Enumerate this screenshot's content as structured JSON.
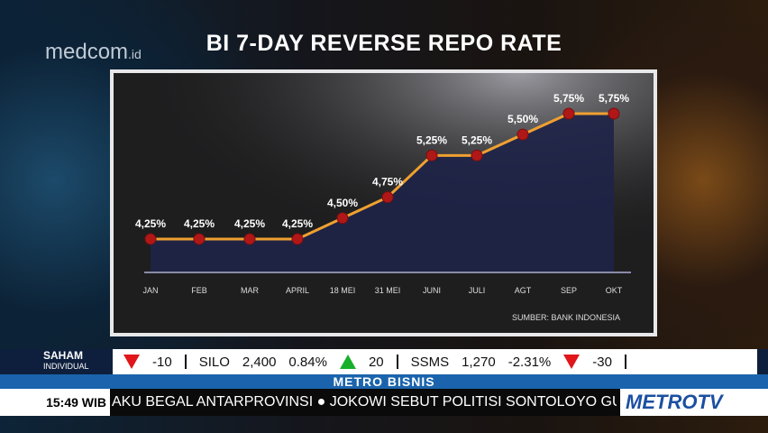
{
  "logo": {
    "text": "medcom",
    "suffix": ".id"
  },
  "chart_data": {
    "type": "line",
    "title": "BI 7-DAY REVERSE REPO RATE",
    "categories": [
      "JAN",
      "FEB",
      "MAR",
      "APRIL",
      "18 MEI",
      "31 MEI",
      "JUNI",
      "JULI",
      "AGT",
      "SEP",
      "OKT"
    ],
    "values": [
      4.25,
      4.25,
      4.25,
      4.25,
      4.5,
      4.75,
      5.25,
      5.25,
      5.5,
      5.75,
      5.75
    ],
    "data_labels": [
      "4,25%",
      "4,25%",
      "4,25%",
      "4,25%",
      "4,50%",
      "4,75%",
      "5,25%",
      "5,25%",
      "5,50%",
      "5,75%",
      "5,75%"
    ],
    "ylim": [
      3.85,
      5.8
    ],
    "source": "SUMBER:  BANK INDONESIA",
    "line_color": "#f0a030",
    "marker_color": "#b01818",
    "area_color": "#1e2448"
  },
  "ticker": {
    "label": "SAHAM",
    "sublabel": "INDIVIDUAL",
    "items": [
      "-10",
      "SILO",
      "2,400",
      "0.84%",
      "20",
      "SSMS",
      "1,270",
      "-2.31%",
      "-30"
    ]
  },
  "program": "METRO BISNIS",
  "news": {
    "time": "15:49 WIB",
    "crawl": "AKU BEGAL ANTARPROVINSI  ●  JOKOWI SEBUT POLITISI SONTOLOYO GUNAK"
  },
  "channel": "METROTV"
}
